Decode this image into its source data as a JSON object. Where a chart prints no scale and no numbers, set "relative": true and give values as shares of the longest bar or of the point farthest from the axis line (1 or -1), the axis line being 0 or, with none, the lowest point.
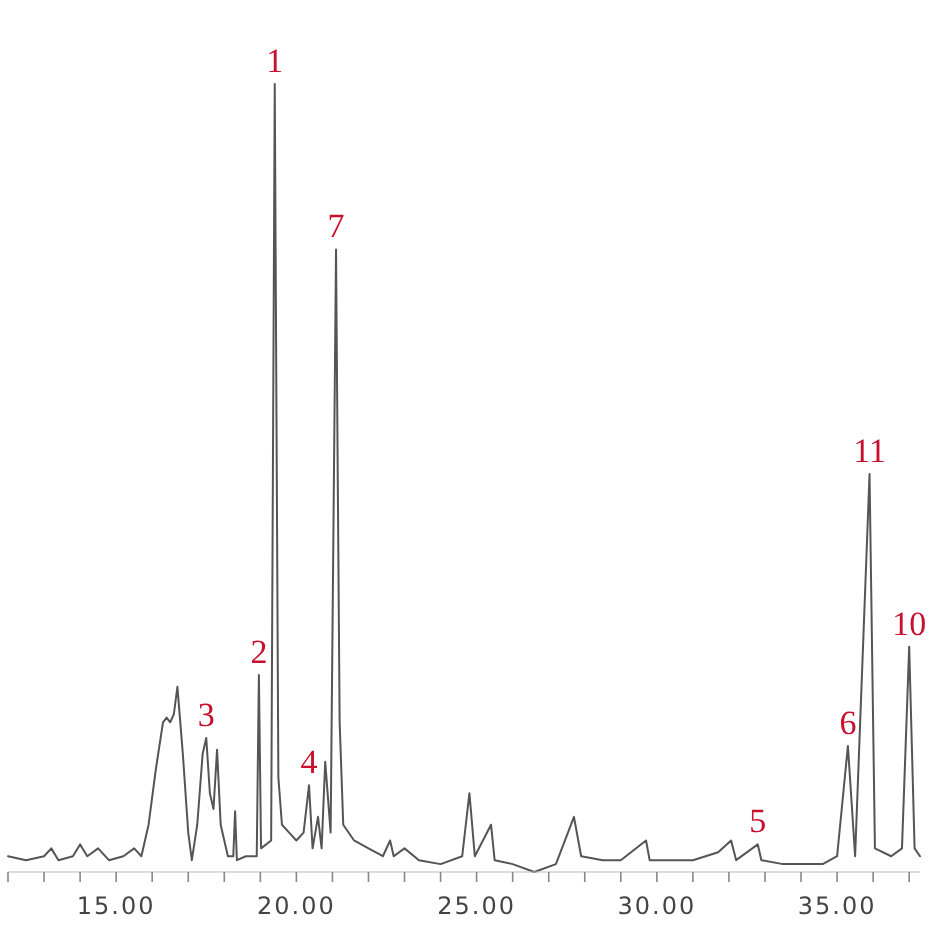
{
  "chart_data": {
    "type": "line",
    "relative": true,
    "x": [
      12.0,
      12.5,
      13.0,
      13.2,
      13.4,
      13.8,
      14.0,
      14.2,
      14.5,
      14.8,
      15.2,
      15.5,
      15.7,
      15.9,
      16.1,
      16.3,
      16.4,
      16.5,
      16.6,
      16.7,
      16.85,
      17.0,
      17.1,
      17.25,
      17.4,
      17.5,
      17.6,
      17.7,
      17.8,
      17.9,
      18.1,
      18.25,
      18.3,
      18.35,
      18.6,
      18.9,
      18.96,
      19.02,
      19.3,
      19.4,
      19.5,
      19.6,
      19.8,
      20.0,
      20.2,
      20.35,
      20.45,
      20.6,
      20.7,
      20.8,
      20.95,
      21.1,
      21.2,
      21.3,
      21.6,
      22.0,
      22.4,
      22.6,
      22.7,
      23.0,
      23.4,
      24.0,
      24.6,
      24.8,
      24.95,
      25.4,
      25.5,
      26.0,
      26.6,
      27.2,
      27.7,
      27.9,
      28.5,
      29.0,
      29.7,
      29.8,
      30.5,
      31.0,
      31.7,
      32.06,
      32.2,
      32.8,
      32.9,
      33.5,
      34.0,
      34.6,
      35.0,
      35.3,
      35.5,
      35.9,
      36.05,
      36.5,
      36.8,
      37.0,
      37.15,
      37.3
    ],
    "series": [
      {
        "color": "#555555",
        "values": [
          0.02,
          0.015,
          0.02,
          0.03,
          0.015,
          0.02,
          0.035,
          0.02,
          0.03,
          0.015,
          0.02,
          0.03,
          0.02,
          0.06,
          0.13,
          0.19,
          0.196,
          0.19,
          0.2,
          0.235,
          0.15,
          0.05,
          0.015,
          0.06,
          0.15,
          0.17,
          0.1,
          0.08,
          0.155,
          0.06,
          0.02,
          0.02,
          0.077,
          0.015,
          0.02,
          0.02,
          0.25,
          0.03,
          0.04,
          1.0,
          0.12,
          0.06,
          0.05,
          0.04,
          0.05,
          0.11,
          0.03,
          0.07,
          0.03,
          0.14,
          0.05,
          0.79,
          0.19,
          0.06,
          0.04,
          0.03,
          0.02,
          0.04,
          0.02,
          0.03,
          0.015,
          0.01,
          0.02,
          0.1,
          0.02,
          0.06,
          0.015,
          0.01,
          0.0,
          0.01,
          0.07,
          0.02,
          0.015,
          0.015,
          0.04,
          0.015,
          0.015,
          0.015,
          0.025,
          0.04,
          0.015,
          0.035,
          0.015,
          0.01,
          0.01,
          0.01,
          0.02,
          0.16,
          0.02,
          0.505,
          0.03,
          0.02,
          0.03,
          0.286,
          0.03,
          0.02
        ]
      }
    ],
    "xlim": [
      12,
      37.3
    ],
    "xticks": [
      {
        "value": 12,
        "label": null
      },
      {
        "value": 13,
        "label": null
      },
      {
        "value": 14,
        "label": null
      },
      {
        "value": 15,
        "label": "15.00"
      },
      {
        "value": 16,
        "label": null
      },
      {
        "value": 17,
        "label": null
      },
      {
        "value": 18,
        "label": null
      },
      {
        "value": 19,
        "label": null
      },
      {
        "value": 20,
        "label": "20.00"
      },
      {
        "value": 21,
        "label": null
      },
      {
        "value": 22,
        "label": null
      },
      {
        "value": 23,
        "label": null
      },
      {
        "value": 24,
        "label": null
      },
      {
        "value": 25,
        "label": "25.00"
      },
      {
        "value": 26,
        "label": null
      },
      {
        "value": 27,
        "label": null
      },
      {
        "value": 28,
        "label": null
      },
      {
        "value": 29,
        "label": null
      },
      {
        "value": 30,
        "label": "30.00"
      },
      {
        "value": 31,
        "label": null
      },
      {
        "value": 32,
        "label": null
      },
      {
        "value": 33,
        "label": null
      },
      {
        "value": 34,
        "label": null
      },
      {
        "value": 35,
        "label": "35.00"
      },
      {
        "value": 36,
        "label": null
      },
      {
        "value": 37,
        "label": null
      }
    ],
    "annotations": [
      {
        "text": "1",
        "x": 19.4,
        "y": 1.0
      },
      {
        "text": "2",
        "x": 18.96,
        "y": 0.25
      },
      {
        "text": "3",
        "x": 17.5,
        "y": 0.17
      },
      {
        "text": "4",
        "x": 20.35,
        "y": 0.11
      },
      {
        "text": "5",
        "x": 32.8,
        "y": 0.035
      },
      {
        "text": "6",
        "x": 35.3,
        "y": 0.16
      },
      {
        "text": "7",
        "x": 21.1,
        "y": 0.79
      },
      {
        "text": "11",
        "x": 35.9,
        "y": 0.505
      },
      {
        "text": "10",
        "x": 37.0,
        "y": 0.286
      }
    ]
  }
}
